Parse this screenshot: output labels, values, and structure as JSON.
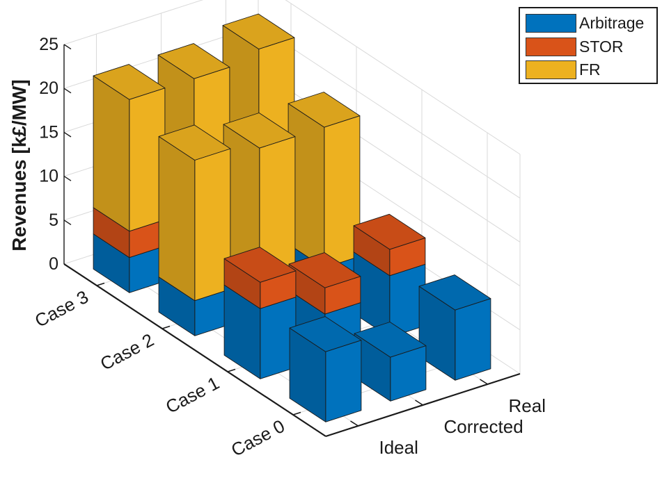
{
  "chart_data": {
    "type": "bar",
    "title": "",
    "xlabel": "",
    "ylabel": "",
    "zlabel": "Revenues [k£/MW]",
    "zlim": [
      0,
      25
    ],
    "zticks": [
      0,
      5,
      10,
      15,
      20,
      25
    ],
    "x_categories": [
      "Ideal",
      "Corrected",
      "Real"
    ],
    "y_categories": [
      "Case 0",
      "Case 1",
      "Case 2",
      "Case 3"
    ],
    "series": [
      {
        "name": "Arbitrage",
        "color": "#0072BD"
      },
      {
        "name": "STOR",
        "color": "#D95319"
      },
      {
        "name": "FR",
        "color": "#EDB120"
      }
    ],
    "bars": [
      {
        "case": "Case 0",
        "scenario": "Ideal",
        "values": [
          8,
          0,
          0
        ]
      },
      {
        "case": "Case 0",
        "scenario": "Corrected",
        "values": [
          5,
          0,
          0
        ]
      },
      {
        "case": "Case 0",
        "scenario": "Real",
        "values": [
          8,
          0,
          0
        ]
      },
      {
        "case": "Case 1",
        "scenario": "Ideal",
        "values": [
          8,
          3,
          0
        ]
      },
      {
        "case": "Case 1",
        "scenario": "Corrected",
        "values": [
          5,
          3,
          0
        ]
      },
      {
        "case": "Case 1",
        "scenario": "Real",
        "values": [
          7,
          3,
          0
        ]
      },
      {
        "case": "Case 2",
        "scenario": "Ideal",
        "values": [
          4,
          0,
          16
        ]
      },
      {
        "case": "Case 2",
        "scenario": "Corrected",
        "values": [
          3,
          0,
          16
        ]
      },
      {
        "case": "Case 2",
        "scenario": "Real",
        "values": [
          3,
          0,
          16
        ]
      },
      {
        "case": "Case 3",
        "scenario": "Ideal",
        "values": [
          4,
          3,
          15
        ]
      },
      {
        "case": "Case 3",
        "scenario": "Corrected",
        "values": [
          3,
          3,
          16
        ]
      },
      {
        "case": "Case 3",
        "scenario": "Real",
        "values": [
          3,
          3,
          17
        ]
      }
    ],
    "legend": {
      "placement": "top-right",
      "entries": [
        "Arbitrage",
        "STOR",
        "FR"
      ]
    },
    "grid": true
  }
}
